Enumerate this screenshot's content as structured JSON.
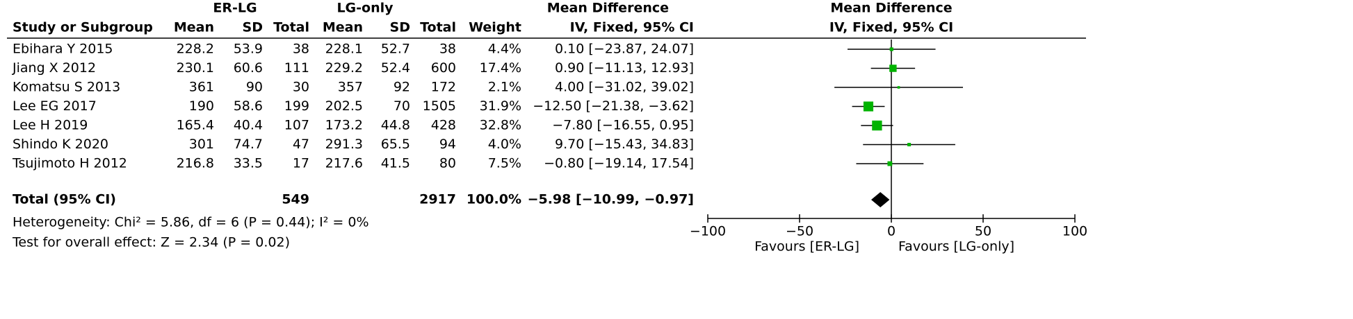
{
  "table": {
    "group_headers": [
      "ER-LG",
      "LG-only",
      "Mean Difference"
    ],
    "method": "IV, Fixed, 95% CI",
    "columns": [
      "Study or Subgroup",
      "Mean",
      "SD",
      "Total",
      "Mean",
      "SD",
      "Total",
      "Weight"
    ],
    "rows": [
      [
        "Ebihara Y 2015",
        228.2,
        53.9,
        38,
        228.1,
        52.7,
        38,
        "4.4%",
        "0.10 [−23.87, 24.07]"
      ],
      [
        "Jiang X 2012",
        230.1,
        60.6,
        111,
        229.2,
        52.4,
        600,
        "17.4%",
        "0.90 [−11.13, 12.93]"
      ],
      [
        "Komatsu S 2013",
        361,
        90,
        30,
        357,
        92,
        172,
        "2.1%",
        "4.00 [−31.02, 39.02]"
      ],
      [
        "Lee EG 2017",
        190,
        58.6,
        199,
        202.5,
        70,
        1505,
        "31.9%",
        "−12.50 [−21.38, −3.62]"
      ],
      [
        "Lee H 2019",
        165.4,
        40.4,
        107,
        173.2,
        44.8,
        428,
        "32.8%",
        "−7.80 [−16.55, 0.95]"
      ],
      [
        "Shindo K 2020",
        301,
        74.7,
        47,
        291.3,
        65.5,
        94,
        "4.0%",
        "9.70 [−15.43, 34.83]"
      ],
      [
        "Tsujimoto H 2012",
        216.8,
        33.5,
        17,
        217.6,
        41.5,
        80,
        "7.5%",
        "−0.80 [−19.14, 17.54]"
      ]
    ],
    "total": {
      "label": "Total (95% CI)",
      "er_total": 549,
      "lg_total": 2917,
      "weight": "100.0%",
      "md": "−5.98 [−10.99, −0.97]"
    },
    "heterogeneity": "Heterogeneity: Chi² = 5.86, df = 6 (P = 0.44); I² = 0%",
    "overall_effect": "Test for overall effect: Z = 2.34 (P = 0.02)"
  },
  "chart_data": {
    "type": "forest",
    "title": "Mean Difference",
    "subtitle": "IV, Fixed, 95% CI",
    "estimates": [
      0.1,
      0.9,
      4.0,
      -12.5,
      -7.8,
      9.7,
      -0.8
    ],
    "lower": [
      -23.87,
      -11.13,
      -31.02,
      -21.38,
      -16.55,
      -15.43,
      -19.14
    ],
    "upper": [
      24.07,
      12.93,
      39.02,
      -3.62,
      0.95,
      34.83,
      17.54
    ],
    "weights": [
      4.4,
      17.4,
      2.1,
      31.9,
      32.8,
      4.0,
      7.5
    ],
    "total_estimate": -5.98,
    "total_lower": -10.99,
    "total_upper": -0.97,
    "color": "#00b300",
    "total_color": "#000000",
    "xlim": [
      -100,
      100
    ],
    "xticks": [
      {
        "value": -100,
        "label": "−100"
      },
      {
        "value": -50,
        "label": "−50"
      },
      0,
      50,
      100
    ],
    "favours_left": "Favours [ER-LG]",
    "favours_right": "Favours [LG-only]"
  }
}
